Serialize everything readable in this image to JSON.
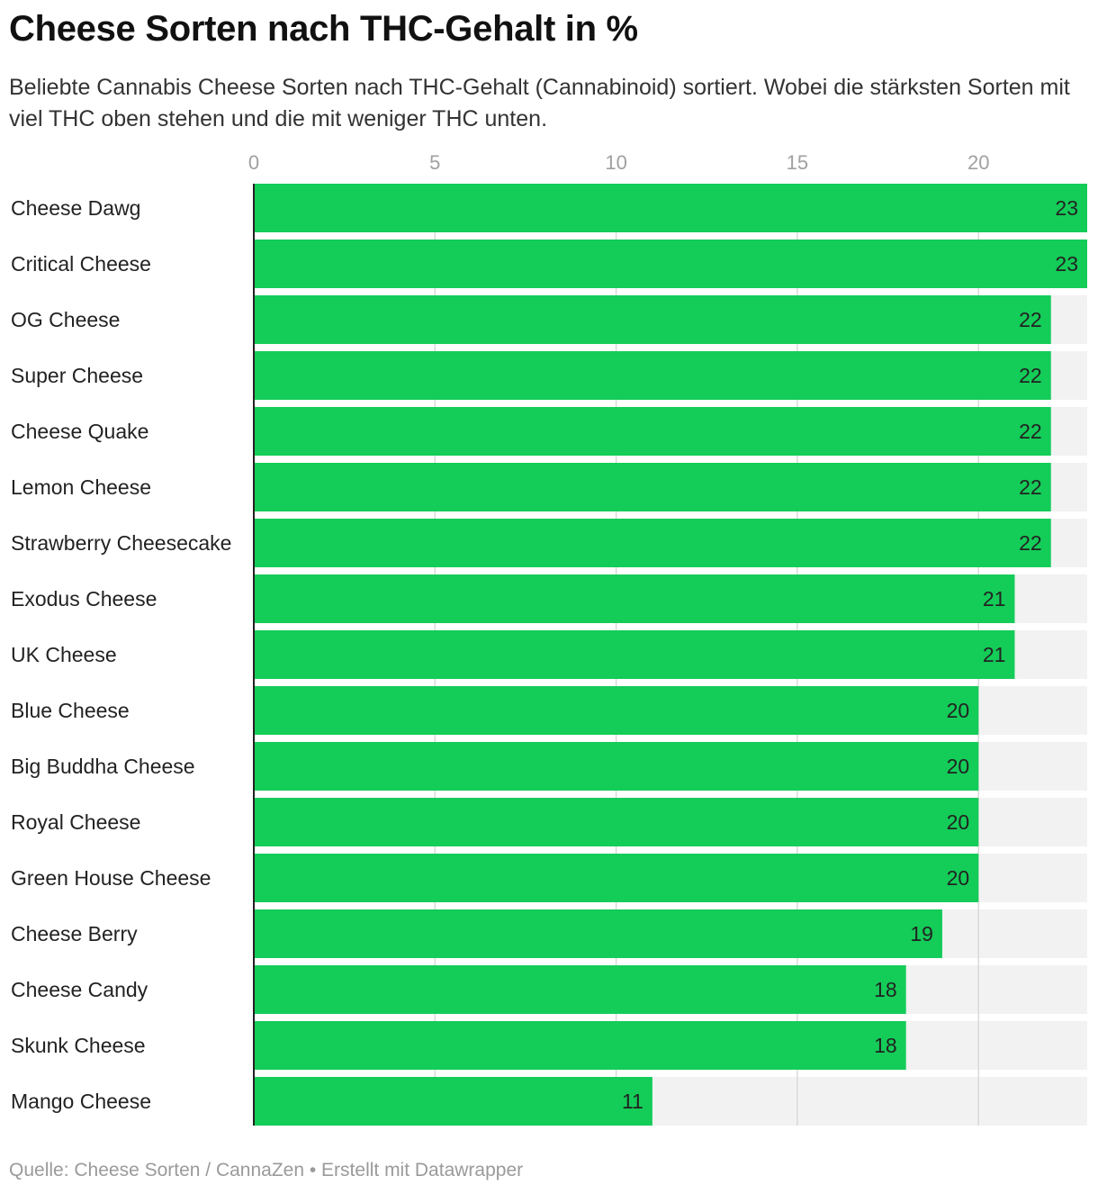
{
  "title": "Cheese Sorten nach THC-Gehalt in %",
  "subtitle": "Beliebte Cannabis Cheese Sorten nach THC-Gehalt (Cannabinoid) sortiert. Wobei die stärksten Sorten mit viel THC oben stehen und die mit weniger THC unten.",
  "footer": "Quelle: Cheese Sorten / CannaZen • Erstellt mit Datawrapper",
  "colors": {
    "bar": "#14cc58",
    "track": "#f2f2f2",
    "grid": "#d9d9d9",
    "axis": "#222222"
  },
  "chart_data": {
    "type": "bar",
    "orientation": "horizontal",
    "title": "Cheese Sorten nach THC-Gehalt in %",
    "categories": [
      "Cheese Dawg",
      "Critical Cheese",
      "OG Cheese",
      "Super Cheese",
      "Cheese Quake",
      "Lemon Cheese",
      "Strawberry Cheesecake",
      "Exodus Cheese",
      "UK Cheese",
      "Blue Cheese",
      "Big Buddha Cheese",
      "Royal Cheese",
      "Green House Cheese",
      "Cheese Berry",
      "Cheese Candy",
      "Skunk Cheese",
      "Mango Cheese"
    ],
    "values": [
      23,
      23,
      22,
      22,
      22,
      22,
      22,
      21,
      21,
      20,
      20,
      20,
      20,
      19,
      18,
      18,
      11
    ],
    "xlim": [
      0,
      23
    ],
    "xticks": [
      0,
      5,
      10,
      15,
      20
    ],
    "grid": true,
    "data_labels": true
  }
}
